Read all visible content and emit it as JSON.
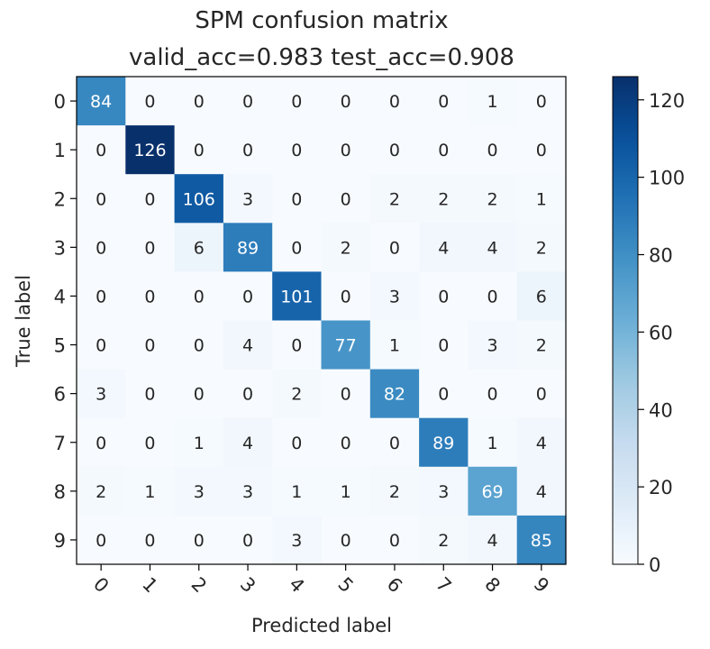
{
  "chart_data": {
    "type": "heatmap",
    "title_line1": "SPM confusion matrix",
    "title_line2": "valid_acc=0.983  test_acc=0.908",
    "xlabel": "Predicted label",
    "ylabel": "True label",
    "x_categories": [
      "0",
      "1",
      "2",
      "3",
      "4",
      "5",
      "6",
      "7",
      "8",
      "9"
    ],
    "y_categories": [
      "0",
      "1",
      "2",
      "3",
      "4",
      "5",
      "6",
      "7",
      "8",
      "9"
    ],
    "matrix": [
      [
        84,
        0,
        0,
        0,
        0,
        0,
        0,
        0,
        1,
        0
      ],
      [
        0,
        126,
        0,
        0,
        0,
        0,
        0,
        0,
        0,
        0
      ],
      [
        0,
        0,
        106,
        3,
        0,
        0,
        2,
        2,
        2,
        1
      ],
      [
        0,
        0,
        6,
        89,
        0,
        2,
        0,
        4,
        4,
        2
      ],
      [
        0,
        0,
        0,
        0,
        101,
        0,
        3,
        0,
        0,
        6
      ],
      [
        0,
        0,
        0,
        4,
        0,
        77,
        1,
        0,
        3,
        2
      ],
      [
        3,
        0,
        0,
        0,
        2,
        0,
        82,
        0,
        0,
        0
      ],
      [
        0,
        0,
        1,
        4,
        0,
        0,
        0,
        89,
        1,
        4
      ],
      [
        2,
        1,
        3,
        3,
        1,
        1,
        2,
        3,
        69,
        4
      ],
      [
        0,
        0,
        0,
        0,
        3,
        0,
        0,
        2,
        4,
        85
      ]
    ],
    "colormap": "Blues",
    "value_range": [
      0,
      126
    ],
    "colorbar": {
      "ticks": [
        "0",
        "20",
        "40",
        "60",
        "80",
        "100",
        "120"
      ]
    },
    "grid": false
  }
}
